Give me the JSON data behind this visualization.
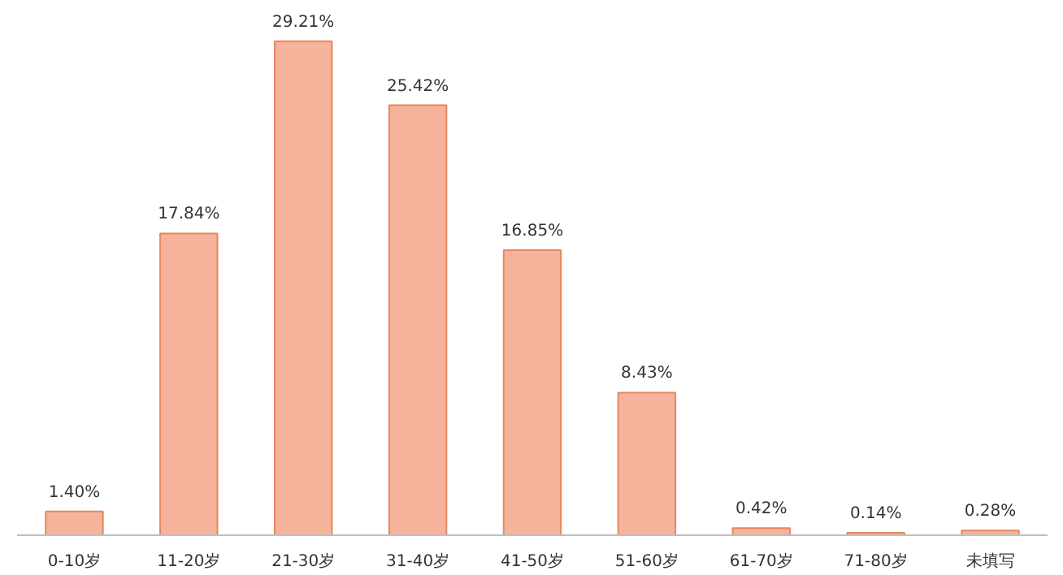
{
  "chart_data": {
    "type": "bar",
    "categories": [
      "0-10岁",
      "11-20岁",
      "21-30岁",
      "31-40岁",
      "41-50岁",
      "51-60岁",
      "61-70岁",
      "71-80岁",
      "未填写"
    ],
    "values": [
      1.4,
      17.84,
      29.21,
      25.42,
      16.85,
      8.43,
      0.42,
      0.14,
      0.28
    ],
    "value_labels": [
      "1.40%",
      "17.84%",
      "29.21%",
      "25.42%",
      "16.85%",
      "8.43%",
      "0.42%",
      "0.14%",
      "0.28%"
    ],
    "color": "#f5b39b",
    "grid": false
  }
}
